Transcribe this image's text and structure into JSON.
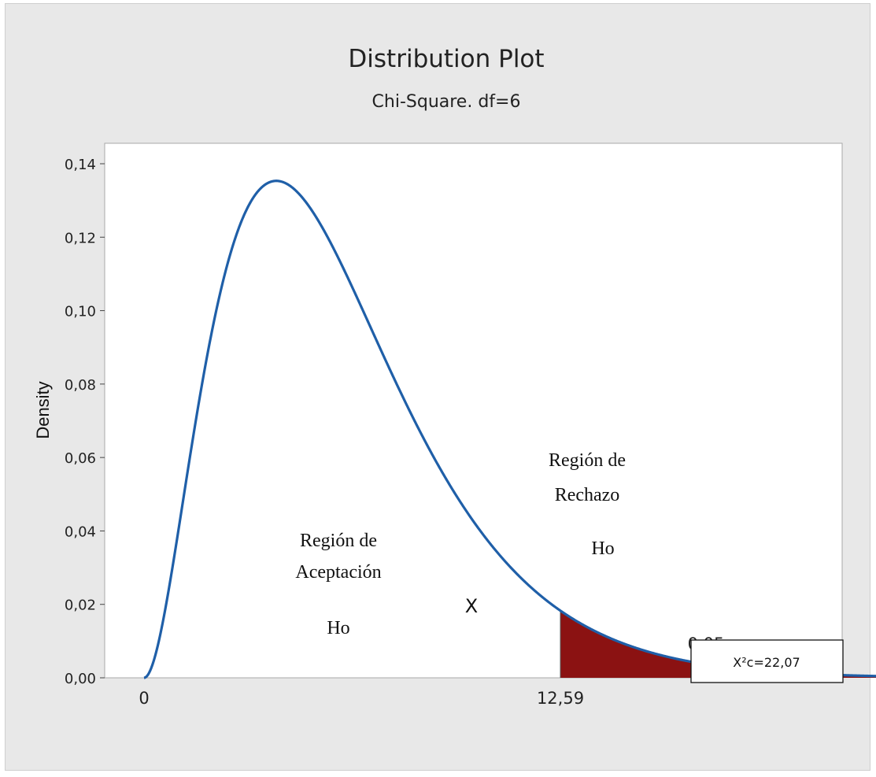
{
  "chart_data": {
    "type": "area",
    "title": "Distribution Plot",
    "subtitle": "Chi-Square. df=6",
    "xlabel": "X",
    "ylabel": "Density",
    "distribution": "chi-square",
    "df": 6,
    "xlim": [
      0,
      27
    ],
    "ylim": [
      0,
      0.14
    ],
    "y_ticks": [
      0,
      0.02,
      0.04,
      0.06,
      0.08,
      0.1,
      0.12,
      0.14
    ],
    "y_tick_labels": [
      "0,00",
      "0,02",
      "0,04",
      "0,06",
      "0,08",
      "0,10",
      "0,12",
      "0,14"
    ],
    "x_ticks": [
      0,
      12.59
    ],
    "x_tick_labels": [
      "0",
      "12,59"
    ],
    "critical_value": 12.59,
    "shaded_region": {
      "from": 12.59,
      "to": 27,
      "area_label": "0,05",
      "color": "#8b1212"
    },
    "curve_color": "#1f5fa8",
    "grid": false,
    "annotations": {
      "accept_line1": "Región de",
      "accept_line2": "Aceptación",
      "accept_line3": "Ho",
      "reject_line1": "Región de",
      "reject_line2": "Rechazo",
      "reject_line3": "Ho"
    },
    "stat_box": "X²c=22,07"
  }
}
